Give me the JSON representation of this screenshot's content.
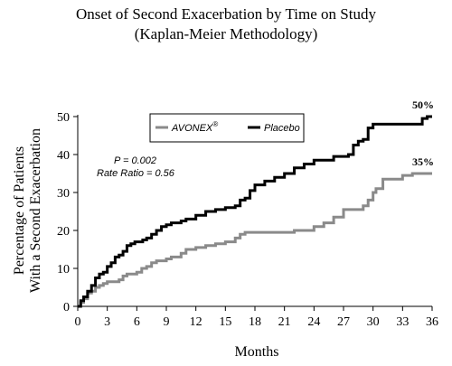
{
  "chart_data": {
    "type": "line",
    "title": "Onset of Second Exacerbation by Time on Study",
    "subtitle": "(Kaplan-Meier Methodology)",
    "xlabel": "Months",
    "ylabel_lines": [
      "Percentage of Patients",
      "With a Second Exacerbation"
    ],
    "xlim": [
      0,
      36
    ],
    "ylim": [
      0,
      50
    ],
    "xticks": [
      0,
      3,
      6,
      9,
      12,
      15,
      18,
      21,
      24,
      27,
      30,
      33,
      36
    ],
    "yticks": [
      0,
      10,
      20,
      30,
      40,
      50
    ],
    "grid": false,
    "legend_position": "top-center",
    "step": true,
    "annotations": {
      "p_value": "P = 0.002",
      "rate_ratio": "Rate Ratio = 0.56"
    },
    "series": [
      {
        "name": "AVONEX",
        "name_sup": "®",
        "end_label": "35%",
        "color": "#8a8a8a",
        "x": [
          0,
          0.3,
          0.6,
          1.0,
          1.4,
          1.8,
          2.2,
          2.6,
          3.0,
          3.4,
          3.8,
          4.2,
          4.6,
          5.0,
          5.5,
          6.0,
          6.5,
          7.0,
          7.5,
          8.0,
          8.5,
          9.0,
          9.5,
          10.0,
          10.5,
          11.0,
          12.0,
          13.0,
          14.0,
          15.0,
          16.0,
          16.5,
          17.0,
          21.0,
          22.0,
          23.0,
          24.0,
          25.0,
          26.0,
          27.0,
          28.0,
          29.0,
          29.5,
          30.0,
          30.3,
          30.6,
          31.0,
          32.0,
          33.0,
          34.0,
          35.0,
          36.0
        ],
        "y": [
          0,
          1.0,
          2.0,
          3.5,
          4.0,
          5.0,
          5.5,
          6.0,
          6.5,
          6.5,
          6.5,
          7.0,
          8.0,
          8.5,
          8.5,
          9.0,
          10.0,
          10.5,
          11.5,
          12.0,
          12.0,
          12.5,
          13.0,
          13.0,
          14.0,
          15.0,
          15.5,
          16.0,
          16.5,
          17.0,
          18.0,
          19.0,
          19.5,
          19.5,
          20.0,
          20.0,
          21.0,
          22.0,
          23.5,
          25.5,
          25.5,
          26.5,
          28.0,
          30.0,
          31.0,
          31.0,
          33.5,
          33.5,
          34.5,
          35.0,
          35.0,
          35.0
        ]
      },
      {
        "name": "Placebo",
        "end_label": "50%",
        "color": "#000000",
        "x": [
          0,
          0.3,
          0.6,
          1.0,
          1.4,
          1.8,
          2.2,
          2.6,
          3.0,
          3.4,
          3.8,
          4.2,
          4.6,
          5.0,
          5.4,
          5.8,
          6.2,
          6.6,
          7.0,
          7.5,
          8.0,
          8.5,
          9.0,
          9.5,
          10.0,
          10.5,
          11.0,
          12.0,
          13.0,
          14.0,
          15.0,
          16.0,
          16.5,
          17.0,
          17.5,
          18.0,
          19.0,
          20.0,
          21.0,
          22.0,
          23.0,
          24.0,
          25.0,
          26.0,
          27.0,
          27.5,
          28.0,
          28.5,
          29.0,
          29.5,
          30.0,
          31.0,
          32.0,
          33.0,
          34.0,
          35.0,
          35.5,
          36.0
        ],
        "y": [
          0,
          1.5,
          2.5,
          4.0,
          5.5,
          7.5,
          8.5,
          9.0,
          10.5,
          11.5,
          13.0,
          13.5,
          14.5,
          16.0,
          16.5,
          17.0,
          17.0,
          17.5,
          18.0,
          19.0,
          20.0,
          21.0,
          21.5,
          22.0,
          22.0,
          22.5,
          23.0,
          24.0,
          25.0,
          25.5,
          26.0,
          26.5,
          28.0,
          28.5,
          30.5,
          32.0,
          33.0,
          34.0,
          35.0,
          36.5,
          37.5,
          38.5,
          38.5,
          39.5,
          39.5,
          40.0,
          42.5,
          43.5,
          44.0,
          47.0,
          48.0,
          48.0,
          48.0,
          48.0,
          48.0,
          49.5,
          50.0,
          50.0
        ]
      }
    ]
  }
}
